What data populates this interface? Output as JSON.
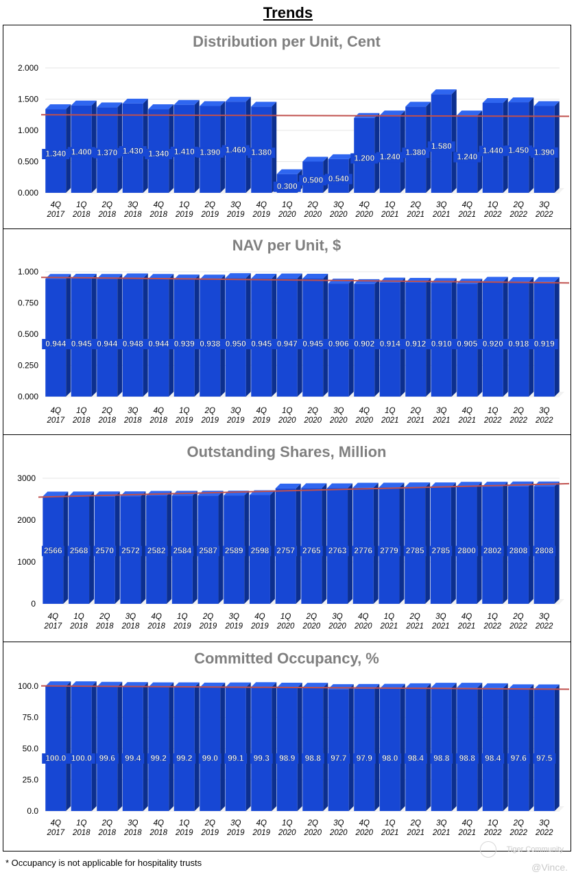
{
  "page": {
    "title": "Trends",
    "footnote": "* Occupancy is not applicable for hospitality trusts",
    "watermark": "Tiger Community",
    "handle": "@Vince."
  },
  "colors": {
    "bar_front": "#1747d4",
    "bar_side": "#0c2f8f",
    "bar_top": "#2f66f0",
    "trend_line": "#c0504d",
    "grid": "#e6e6e6",
    "title_gray": "#7f7f7f"
  },
  "chart_data": [
    {
      "type": "bar",
      "title": "Distribution per Unit, Cent",
      "categories": [
        "4Q 2017",
        "1Q 2018",
        "2Q 2018",
        "3Q 2018",
        "4Q 2018",
        "1Q 2019",
        "2Q 2019",
        "3Q 2019",
        "4Q 2019",
        "1Q 2020",
        "2Q 2020",
        "3Q 2020",
        "4Q 2020",
        "1Q 2021",
        "2Q 2021",
        "3Q 2021",
        "4Q 2021",
        "1Q 2022",
        "2Q 2022",
        "3Q 2022"
      ],
      "values": [
        1.34,
        1.4,
        1.37,
        1.43,
        1.34,
        1.41,
        1.39,
        1.46,
        1.38,
        0.3,
        0.5,
        0.54,
        1.2,
        1.24,
        1.38,
        1.58,
        1.24,
        1.44,
        1.45,
        1.39
      ],
      "labels": [
        "1.340",
        "1.400",
        "1.370",
        "1.430",
        "1.340",
        "1.410",
        "1.390",
        "1.460",
        "1.380",
        "0.300",
        "0.500",
        "0.540",
        "1.200",
        "1.240",
        "1.380",
        "1.580",
        "1.240",
        "1.440",
        "1.450",
        "1.390"
      ],
      "ylim": [
        0,
        2
      ],
      "yticks": [
        "2.000",
        "1.500",
        "1.000",
        "0.500",
        "0.000"
      ],
      "trend": [
        1.25,
        1.225
      ],
      "label_mode": "top"
    },
    {
      "type": "bar",
      "title": "NAV per Unit, $",
      "categories": [
        "4Q 2017",
        "1Q 2018",
        "2Q 2018",
        "3Q 2018",
        "4Q 2018",
        "1Q 2019",
        "2Q 2019",
        "3Q 2019",
        "4Q 2019",
        "1Q 2020",
        "2Q 2020",
        "3Q 2020",
        "4Q 2020",
        "1Q 2021",
        "2Q 2021",
        "3Q 2021",
        "4Q 2021",
        "1Q 2022",
        "2Q 2022",
        "3Q 2022"
      ],
      "values": [
        0.944,
        0.945,
        0.944,
        0.948,
        0.944,
        0.939,
        0.938,
        0.95,
        0.945,
        0.947,
        0.945,
        0.906,
        0.902,
        0.914,
        0.912,
        0.91,
        0.905,
        0.92,
        0.918,
        0.919
      ],
      "labels": [
        "0.944",
        "0.945",
        "0.944",
        "0.948",
        "0.944",
        "0.939",
        "0.938",
        "0.950",
        "0.945",
        "0.947",
        "0.945",
        "0.906",
        "0.902",
        "0.914",
        "0.912",
        "0.910",
        "0.905",
        "0.920",
        "0.918",
        "0.919"
      ],
      "ylim": [
        0,
        1
      ],
      "yticks": [
        "1.000",
        "0.750",
        "0.500",
        "0.250",
        "0.000"
      ],
      "trend": [
        0.955,
        0.91
      ],
      "label_mode": "mid"
    },
    {
      "type": "bar",
      "title": "Outstanding Shares, Million",
      "categories": [
        "4Q 2017",
        "1Q 2018",
        "2Q 2018",
        "3Q 2018",
        "4Q 2018",
        "1Q 2019",
        "2Q 2019",
        "3Q 2019",
        "4Q 2019",
        "1Q 2020",
        "2Q 2020",
        "3Q 2020",
        "4Q 2020",
        "1Q 2021",
        "2Q 2021",
        "3Q 2021",
        "4Q 2021",
        "1Q 2022",
        "2Q 2022",
        "3Q 2022"
      ],
      "values": [
        2566,
        2568,
        2570,
        2572,
        2582,
        2584,
        2587,
        2589,
        2598,
        2757,
        2765,
        2763,
        2776,
        2779,
        2785,
        2785,
        2800,
        2802,
        2808,
        2808
      ],
      "labels": [
        "2566",
        "2568",
        "2570",
        "2572",
        "2582",
        "2584",
        "2587",
        "2589",
        "2598",
        "2757",
        "2765",
        "2763",
        "2776",
        "2779",
        "2785",
        "2785",
        "2800",
        "2802",
        "2808",
        "2808"
      ],
      "ylim": [
        0,
        3000
      ],
      "yticks": [
        "3000",
        "2000",
        "1000",
        "0"
      ],
      "trend": [
        2550,
        2870
      ],
      "label_mode": "mid"
    },
    {
      "type": "bar",
      "title": "Committed Occupancy, %",
      "categories": [
        "4Q 2017",
        "1Q 2018",
        "2Q 2018",
        "3Q 2018",
        "4Q 2018",
        "1Q 2019",
        "2Q 2019",
        "3Q 2019",
        "4Q 2019",
        "1Q 2020",
        "2Q 2020",
        "3Q 2020",
        "4Q 2020",
        "1Q 2021",
        "2Q 2021",
        "3Q 2021",
        "4Q 2021",
        "1Q 2022",
        "2Q 2022",
        "3Q 2022"
      ],
      "values": [
        100.0,
        100.0,
        99.6,
        99.4,
        99.2,
        99.2,
        99.0,
        99.1,
        99.3,
        98.9,
        98.8,
        97.7,
        97.9,
        98.0,
        98.4,
        98.8,
        98.8,
        98.4,
        97.6,
        97.5
      ],
      "labels": [
        "100.0",
        "100.0",
        "99.6",
        "99.4",
        "99.2",
        "99.2",
        "99.0",
        "99.1",
        "99.3",
        "98.9",
        "98.8",
        "97.7",
        "97.9",
        "98.0",
        "98.4",
        "98.8",
        "98.8",
        "98.4",
        "97.6",
        "97.5"
      ],
      "ylim": [
        0,
        100
      ],
      "yticks": [
        "100.0",
        "75.0",
        "50.0",
        "25.0",
        "0.0"
      ],
      "trend": [
        100.2,
        97.5
      ],
      "label_mode": "mid"
    }
  ]
}
